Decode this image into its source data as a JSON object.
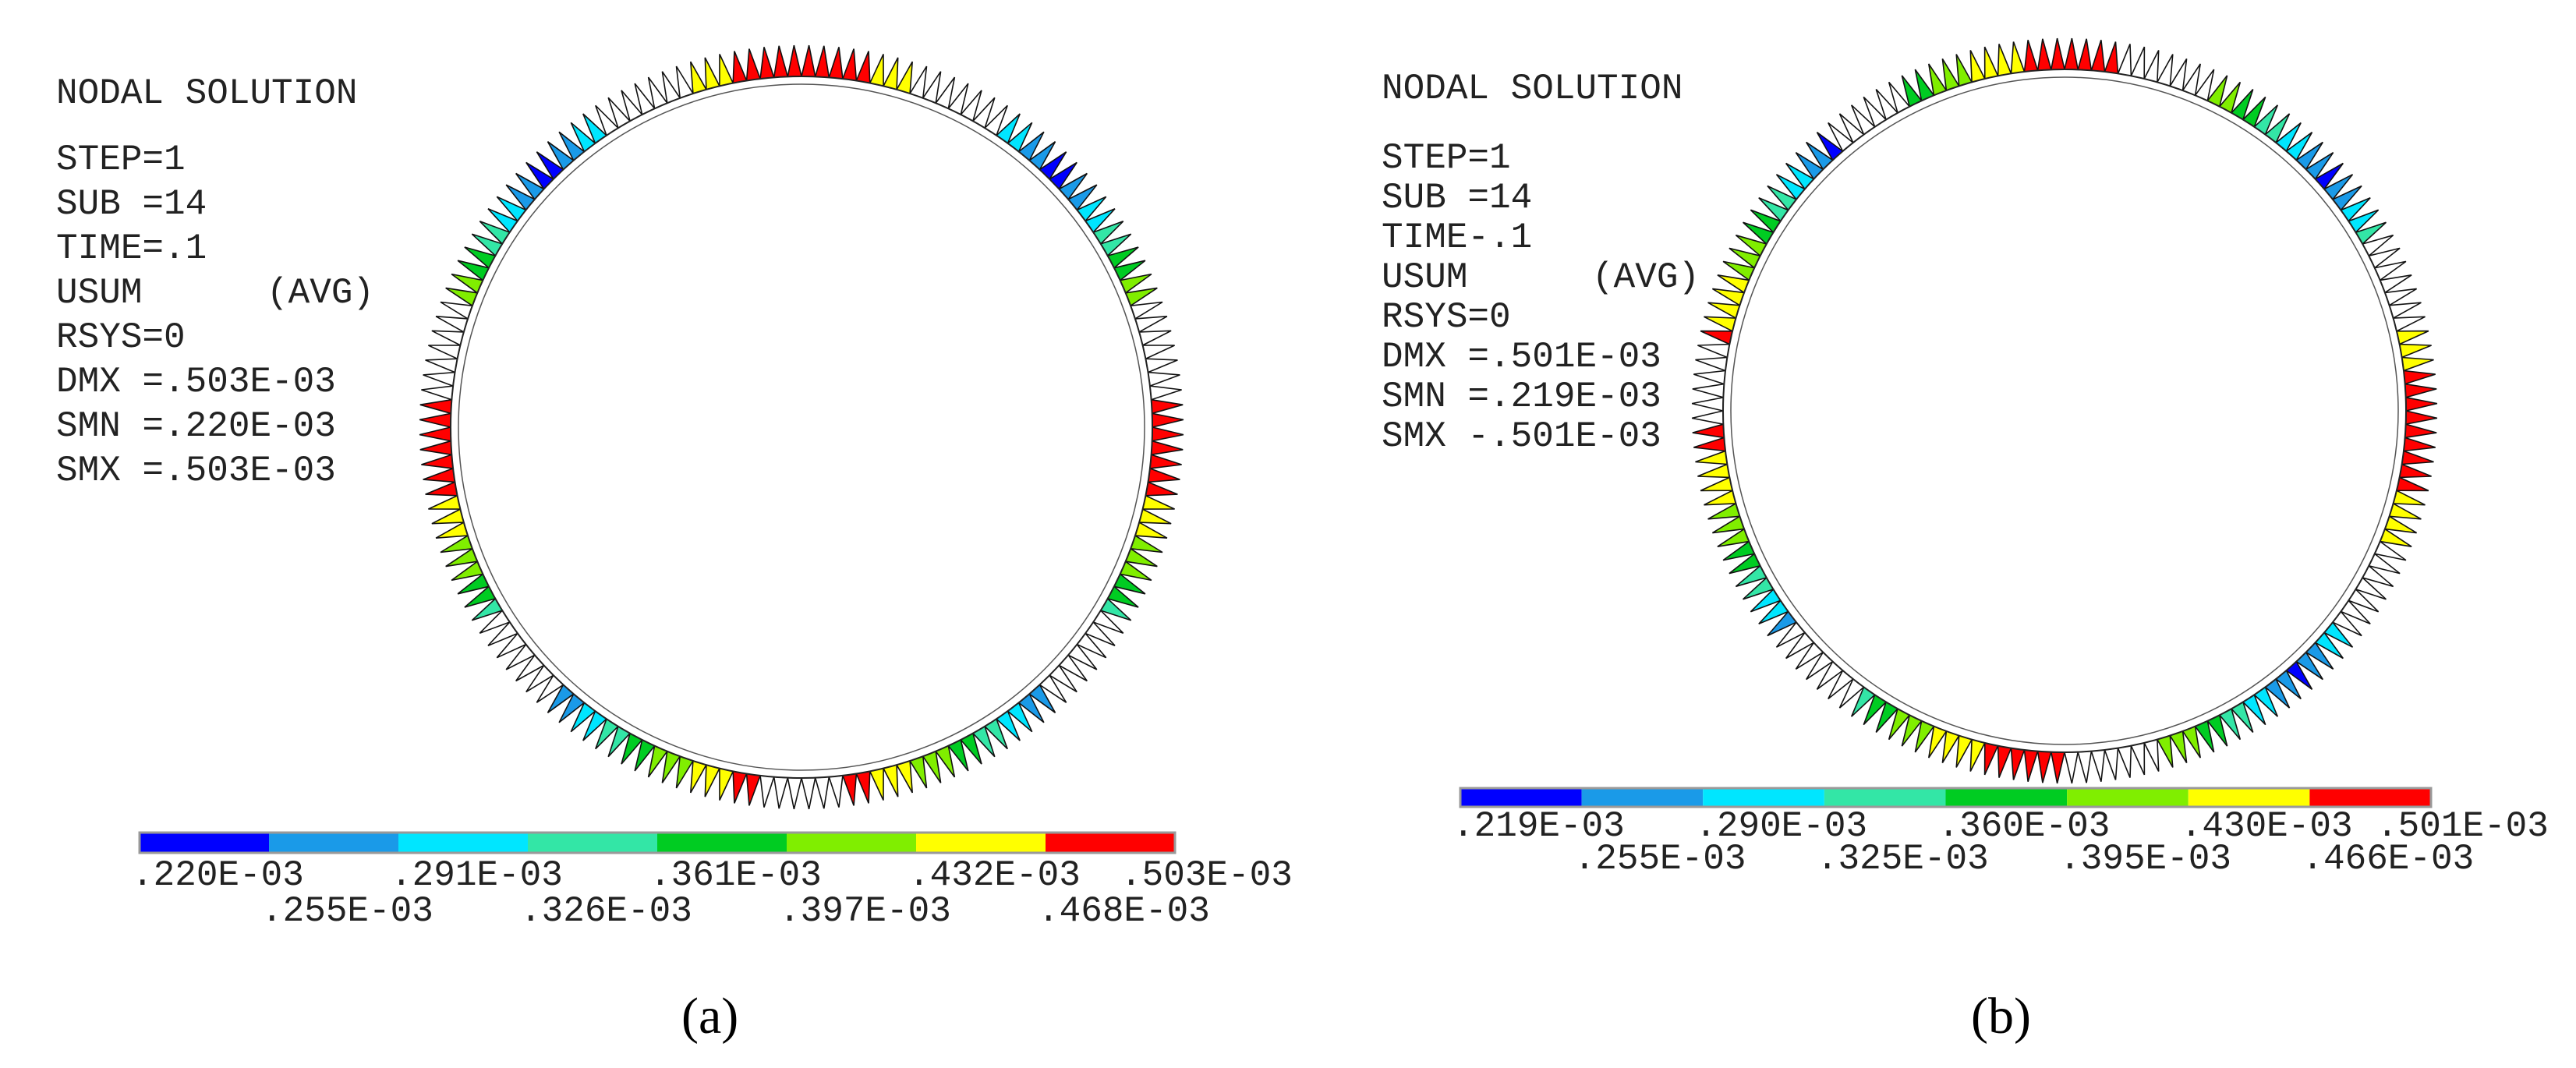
{
  "panels": [
    {
      "info_head": [
        "NODAL SOLUTION",
        "STEP=1",
        "SUB =14",
        "TIME=.1"
      ],
      "quantity": "USUM",
      "averaging": "(AVG)",
      "info_tail": [
        "RSYS=0",
        "DMX =.503E-03",
        "SMN =.220E-03",
        "SMX =.503E-03"
      ],
      "legend_labels": [
        ".220E-03",
        ".255E-03",
        ".291E-03",
        ".326E-03",
        ".361E-03",
        ".397E-03",
        ".432E-03",
        ".468E-03",
        ".503E-03"
      ],
      "caption": "(a)"
    },
    {
      "info_head": [
        "NODAL SOLUTION",
        "STEP=1",
        "SUB =14",
        "TIME-.1"
      ],
      "quantity": "USUM",
      "averaging": "(AVG)",
      "info_tail": [
        "RSYS=0",
        "DMX =.501E-03",
        "SMN =.219E-03",
        "SMX -.501E-03"
      ],
      "legend_labels": [
        ".219E-03",
        ".255E-03",
        ".290E-03",
        ".325E-03",
        ".360E-03",
        ".395E-03",
        ".430E-03",
        ".466E-03",
        ".501E-03"
      ],
      "caption": "(b)"
    }
  ],
  "legend_colors": [
    "#0000ff",
    "#1a9ae8",
    "#00e6ff",
    "#33e6a6",
    "#00cc22",
    "#80ee00",
    "#ffff00",
    "#ff0000"
  ]
}
